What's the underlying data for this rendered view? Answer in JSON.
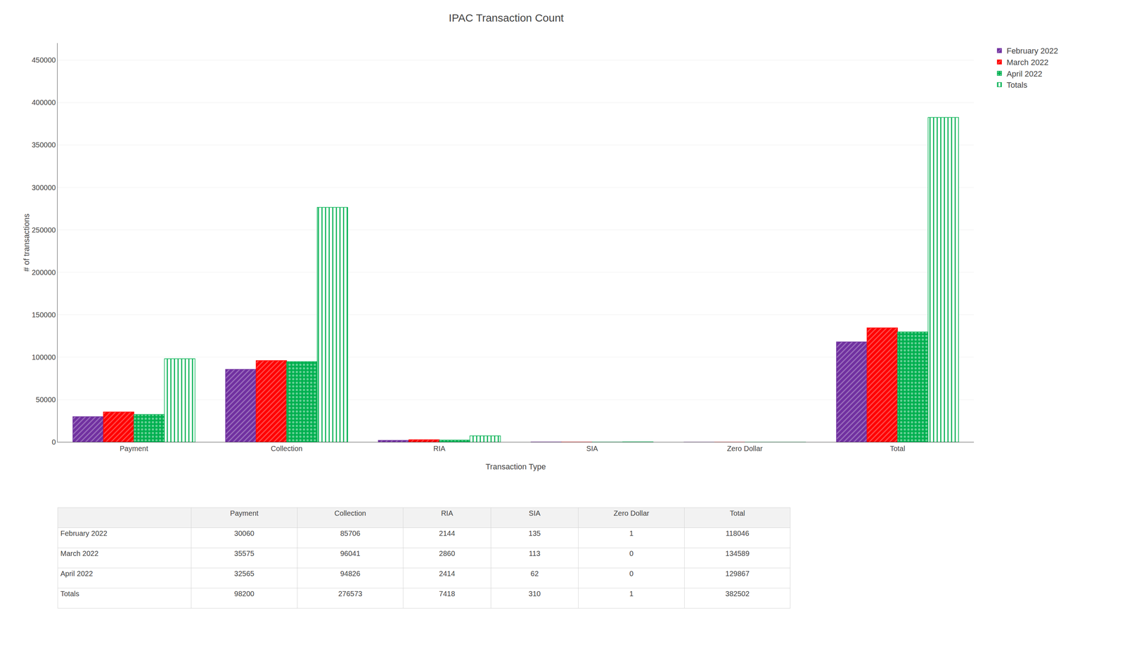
{
  "chart_data": {
    "type": "bar",
    "title": "IPAC Transaction Count",
    "xlabel": "Transaction Type",
    "ylabel": "# of transactions",
    "categories": [
      "Payment",
      "Collection",
      "RIA",
      "SIA",
      "Zero Dollar",
      "Total"
    ],
    "series": [
      {
        "name": "February 2022",
        "color": "#7030A0",
        "values": [
          30060,
          85706,
          2144,
          135,
          1,
          118046
        ]
      },
      {
        "name": "March 2022",
        "color": "#FF0000",
        "values": [
          35575,
          96041,
          2860,
          113,
          0,
          134589
        ]
      },
      {
        "name": "April 2022",
        "color": "#00B050",
        "values": [
          32565,
          94826,
          2414,
          62,
          0,
          129867
        ]
      },
      {
        "name": "Totals",
        "color": "#00B050",
        "values": [
          98200,
          276573,
          7418,
          310,
          1,
          382502
        ]
      }
    ],
    "ylim": [
      0,
      470000
    ],
    "yticks": [
      0,
      50000,
      100000,
      150000,
      200000,
      250000,
      300000,
      350000,
      400000,
      450000
    ],
    "grid": true,
    "legend": "right"
  }
}
